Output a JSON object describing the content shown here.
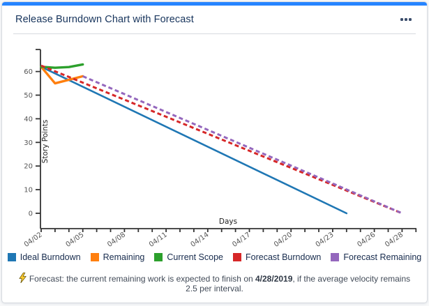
{
  "card": {
    "title": "Release Burndown Chart with Forecast",
    "accent_color": "#2684FF"
  },
  "icons": {
    "menu": "more-options-ellipsis",
    "footer": "lightning-bolt"
  },
  "chart_data": {
    "type": "line",
    "title": "Release Burndown Chart with Forecast",
    "xlabel": "Days",
    "ylabel": "Story Points",
    "ylim": [
      0,
      68
    ],
    "yticks": [
      0,
      10,
      20,
      30,
      40,
      50,
      60
    ],
    "grid": false,
    "legend_position": "bottom",
    "x_axis": {
      "unit": "date",
      "start_date": "04/02",
      "end_date": "04/28",
      "tick_interval_days": 1,
      "labeled_ticks": [
        {
          "day": 0,
          "label": "04/02"
        },
        {
          "day": 3,
          "label": "04/05"
        },
        {
          "day": 6,
          "label": "04/08"
        },
        {
          "day": 9,
          "label": "04/11"
        },
        {
          "day": 12,
          "label": "04/14"
        },
        {
          "day": 15,
          "label": "04/17"
        },
        {
          "day": 18,
          "label": "04/20"
        },
        {
          "day": 21,
          "label": "04/23"
        },
        {
          "day": 24,
          "label": "04/26"
        },
        {
          "day": 26,
          "label": "04/28"
        }
      ]
    },
    "series": [
      {
        "name": "Ideal Burndown",
        "color": "#1f77b4",
        "style": "solid",
        "points": [
          [
            0,
            62
          ],
          [
            22,
            0
          ]
        ]
      },
      {
        "name": "Remaining",
        "color": "#ff7f0e",
        "style": "solid",
        "points": [
          [
            0,
            62
          ],
          [
            1,
            55
          ],
          [
            3,
            58
          ]
        ]
      },
      {
        "name": "Current Scope",
        "color": "#2ca02c",
        "style": "solid",
        "points": [
          [
            0,
            62
          ],
          [
            1,
            61.6
          ],
          [
            2,
            61.9
          ],
          [
            3,
            63
          ]
        ]
      },
      {
        "name": "Forecast Burndown",
        "color": "#d62728",
        "style": "dashed",
        "points": [
          [
            0,
            62.5
          ],
          [
            26,
            0
          ]
        ]
      },
      {
        "name": "Forecast Remaining",
        "color": "#9467bd",
        "style": "dashed",
        "points": [
          [
            3,
            58
          ],
          [
            26,
            0
          ]
        ]
      }
    ]
  },
  "footer": {
    "text_prefix": "Forecast: the current remaining work is expected to finish on ",
    "highlight_date": "4/28/2019",
    "text_suffix": ", if the average velocity remains 2.5 per interval."
  }
}
